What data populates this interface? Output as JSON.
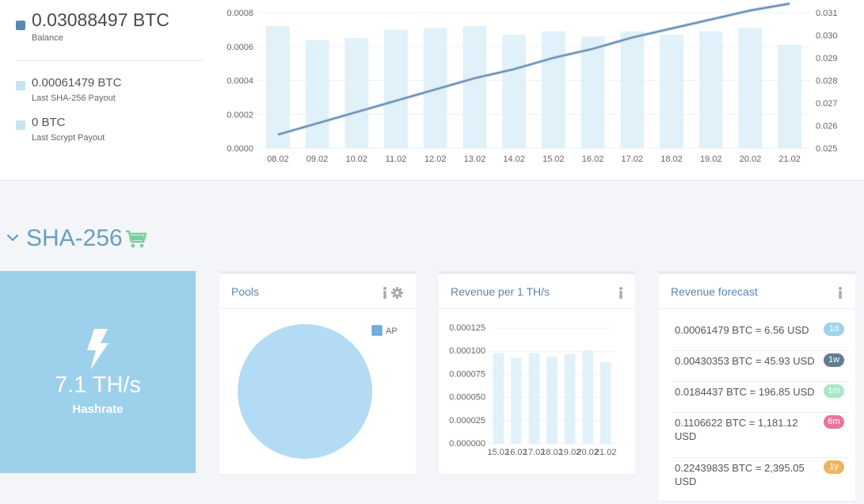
{
  "balances": {
    "main": {
      "value": "0.03088497 BTC",
      "label": "Balance"
    },
    "sha256": {
      "value": "0.00061479 BTC",
      "label": "Last SHA-256 Payout"
    },
    "scrypt": {
      "value": "0 BTC",
      "label": "Last Scrypt Payout"
    }
  },
  "colors": {
    "accent": "#5b87b0",
    "bar": "#e0f1fa",
    "line": "#5b87b0",
    "tile": "#9dd0ea",
    "pie": "#b3dbf5",
    "badge_1d": "#9fd3ea",
    "badge_1w": "#607d8f",
    "badge_1m": "#a6e8c8",
    "badge_6m": "#e8759a",
    "badge_1y": "#efb35f"
  },
  "section": {
    "title": "SHA-256",
    "icons": [
      "chevron-down-icon",
      "cart-icon"
    ]
  },
  "hashrate": {
    "value": "7.1 TH/s",
    "label": "Hashrate",
    "icon": "bolt-icon"
  },
  "pools": {
    "title": "Pools",
    "icons": [
      "info-icon",
      "gear-icon"
    ]
  },
  "revenue_per_th": {
    "title": "Revenue per 1 TH/s",
    "icons": [
      "info-icon"
    ]
  },
  "forecast": {
    "title": "Revenue forecast",
    "icons": [
      "info-icon"
    ],
    "rows": [
      {
        "text": "0.00061479 BTC = 6.56 USD",
        "badge": "1d"
      },
      {
        "text": "0.00430353 BTC = 45.93 USD",
        "badge": "1w"
      },
      {
        "text": "0.0184437 BTC = 196.85 USD",
        "badge": "1m"
      },
      {
        "text": "0.1106622 BTC = 1,181.12 USD",
        "badge": "6m"
      },
      {
        "text": "0.22439835 BTC = 2,395.05 USD",
        "badge": "1y"
      }
    ]
  },
  "chart_data": [
    {
      "type": "bar",
      "categories": [
        "08.02",
        "09.02",
        "10.02",
        "11.02",
        "12.02",
        "13.02",
        "14.02",
        "15.02",
        "16.02",
        "17.02",
        "18.02",
        "19.02",
        "20.02",
        "21.02"
      ],
      "series": [
        {
          "type": "bar",
          "axis": "left",
          "values": [
            0.00072,
            0.00064,
            0.00065,
            0.0007,
            0.00071,
            0.00072,
            0.00067,
            0.00069,
            0.00066,
            0.00069,
            0.00067,
            0.00069,
            0.00071,
            0.00061
          ]
        },
        {
          "type": "line",
          "axis": "right",
          "values": [
            0.0256,
            0.0261,
            0.0266,
            0.0271,
            0.0276,
            0.0281,
            0.0285,
            0.029,
            0.0294,
            0.0299,
            0.0303,
            0.0307,
            0.0311,
            0.0314
          ]
        }
      ],
      "y_left": {
        "range": [
          0,
          0.0008
        ],
        "ticks": [
          "0.0000",
          "0.0002",
          "0.0004",
          "0.0006",
          "0.0008"
        ]
      },
      "y_right": {
        "range": [
          0.025,
          0.031
        ],
        "ticks": [
          "0.025",
          "0.026",
          "0.027",
          "0.028",
          "0.029",
          "0.030",
          "0.031"
        ]
      },
      "grid": true
    },
    {
      "type": "pie",
      "labels": [
        "AP"
      ],
      "values": [
        100
      ],
      "legend": "top-right"
    },
    {
      "type": "bar",
      "categories": [
        "15.02",
        "16.02",
        "17.02",
        "18.02",
        "19.02",
        "20.02",
        "21.02"
      ],
      "values": [
        9.8e-05,
        9.3e-05,
        9.8e-05,
        9.4e-05,
        9.7e-05,
        0.000101,
        8.8e-05
      ],
      "ylim": [
        0,
        0.000125
      ],
      "ticks": [
        "0.000000",
        "0.000025",
        "0.000050",
        "0.000075",
        "0.000100",
        "0.000125"
      ],
      "grid": true
    }
  ]
}
